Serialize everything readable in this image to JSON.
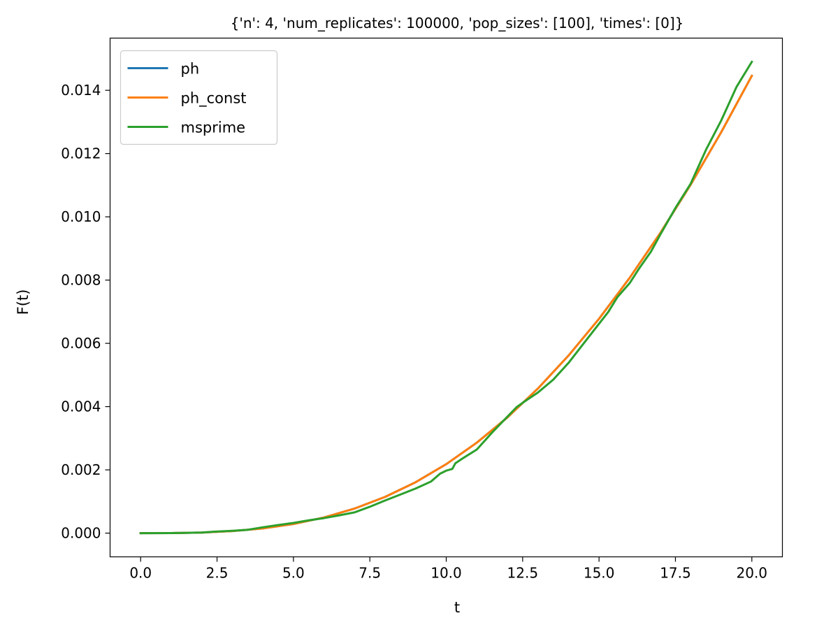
{
  "chart_data": {
    "type": "line",
    "title": "{'n': 4, 'num_replicates': 100000, 'pop_sizes': [100], 'times': [0]}",
    "xlabel": "t",
    "ylabel": "F(t)",
    "xlim": [
      -1.0,
      21.0
    ],
    "ylim": [
      -0.00075,
      0.01565
    ],
    "xticks": [
      0.0,
      2.5,
      5.0,
      7.5,
      10.0,
      12.5,
      15.0,
      17.5,
      20.0
    ],
    "xtick_labels": [
      "0.0",
      "2.5",
      "5.0",
      "7.5",
      "10.0",
      "12.5",
      "15.0",
      "17.5",
      "20.0"
    ],
    "yticks": [
      0.0,
      0.002,
      0.004,
      0.006,
      0.008,
      0.01,
      0.012,
      0.014
    ],
    "ytick_labels": [
      "0.000",
      "0.002",
      "0.004",
      "0.006",
      "0.008",
      "0.010",
      "0.012",
      "0.014"
    ],
    "grid": false,
    "legend_position": "top-left",
    "series": [
      {
        "name": "ph",
        "color": "#1f77b4",
        "x": [
          0,
          1,
          2,
          3,
          4,
          5,
          6,
          7,
          8,
          9,
          10,
          11,
          12,
          13,
          14,
          15,
          16,
          17,
          18,
          19,
          20
        ],
        "y": [
          0,
          2e-06,
          1.9e-05,
          6.4e-05,
          0.000149,
          0.000289,
          0.000494,
          0.000776,
          0.001145,
          0.00161,
          0.00218,
          0.00286,
          0.003656,
          0.004572,
          0.005612,
          0.006777,
          0.008067,
          0.009482,
          0.01102,
          0.01268,
          0.014459
        ]
      },
      {
        "name": "ph_const",
        "color": "#ff7f0e",
        "x": [
          0,
          1,
          2,
          3,
          4,
          5,
          6,
          7,
          8,
          9,
          10,
          11,
          12,
          13,
          14,
          15,
          16,
          17,
          18,
          19,
          20
        ],
        "y": [
          0,
          2e-06,
          1.9e-05,
          6.4e-05,
          0.000149,
          0.000289,
          0.000494,
          0.000776,
          0.001145,
          0.00161,
          0.00218,
          0.00286,
          0.003656,
          0.004572,
          0.005612,
          0.006777,
          0.008067,
          0.009482,
          0.01102,
          0.01268,
          0.014459
        ]
      },
      {
        "name": "msprime",
        "color": "#2ca02c",
        "x": [
          0,
          1,
          2,
          2.4,
          3,
          3.5,
          4,
          4.5,
          5,
          5.5,
          6,
          6.5,
          7,
          7.5,
          8,
          8.5,
          9,
          9.5,
          9.8,
          10,
          10.2,
          10.3,
          10.5,
          11,
          11.5,
          12,
          12.3,
          12.5,
          13,
          13.5,
          14,
          14.5,
          15,
          15.3,
          15.6,
          16,
          16.3,
          16.7,
          17,
          17.5,
          18,
          18.5,
          19,
          19.5,
          20
        ],
        "y": [
          0,
          2e-06,
          1.7e-05,
          4.5e-05,
          7.2e-05,
          0.000105,
          0.000185,
          0.000255,
          0.000322,
          0.000405,
          0.000475,
          0.000563,
          0.000656,
          0.000834,
          0.001033,
          0.00122,
          0.00141,
          0.00163,
          0.00188,
          0.001975,
          0.00203,
          0.00221,
          0.00234,
          0.002642,
          0.00318,
          0.00368,
          0.00398,
          0.00412,
          0.004445,
          0.00485,
          0.00538,
          0.006,
          0.00662,
          0.00699,
          0.00746,
          0.0079,
          0.00835,
          0.0089,
          0.00943,
          0.01028,
          0.01105,
          0.01212,
          0.01305,
          0.01411,
          0.0149
        ]
      }
    ]
  }
}
